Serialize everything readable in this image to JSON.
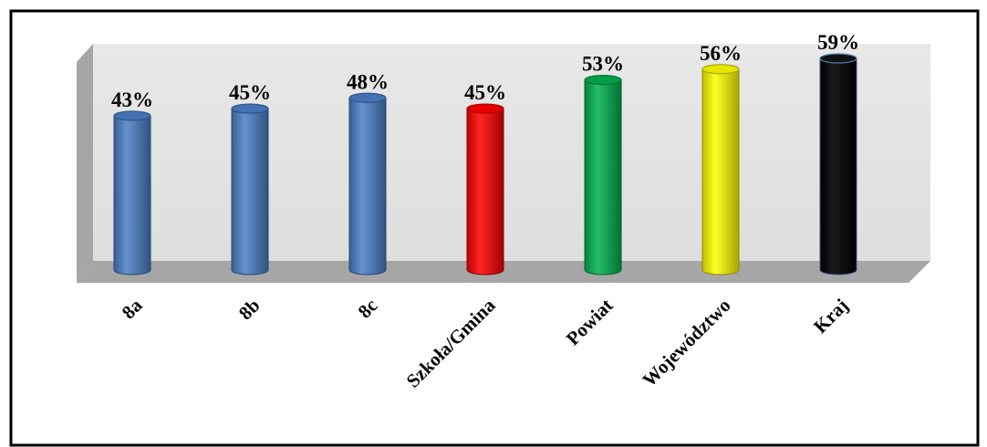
{
  "chart_data": {
    "type": "bar",
    "categories": [
      "8a",
      "8b",
      "8c",
      "Szkoła/Gmina",
      "Powiat",
      "Województwo",
      "Kraj"
    ],
    "values": [
      43,
      45,
      48,
      45,
      53,
      56,
      59
    ],
    "value_labels": [
      "43%",
      "45%",
      "48%",
      "45%",
      "53%",
      "56%",
      "59%"
    ],
    "colors": [
      "#4a7fc8",
      "#4a7fc8",
      "#4a7fc8",
      "#ff0000",
      "#00b050",
      "#ffff00",
      "#000000"
    ],
    "bar_shape": "cylinder",
    "ylim": [
      0,
      60
    ],
    "grid": false,
    "legend": "none"
  }
}
